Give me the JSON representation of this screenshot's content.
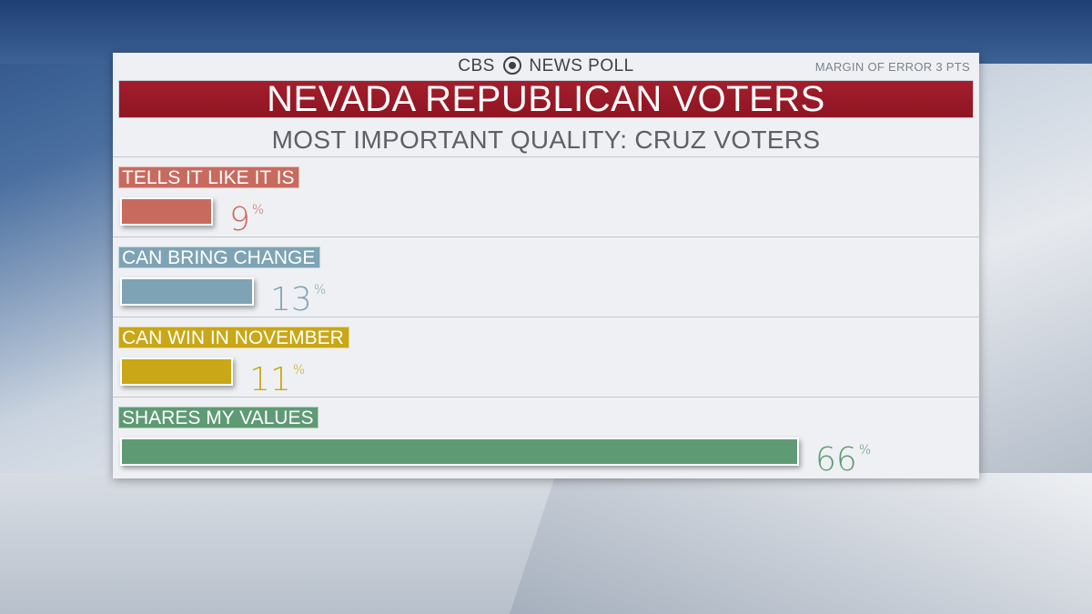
{
  "header": {
    "logo_left": "CBS",
    "logo_right": "NEWS POLL",
    "margin_of_error": "MARGIN OF ERROR 3 PTS"
  },
  "chart_data": {
    "type": "bar",
    "title": "NEVADA REPUBLICAN VOTERS",
    "subtitle": "MOST IMPORTANT QUALITY: CRUZ VOTERS",
    "categories": [
      "TELLS IT LIKE IT IS",
      "CAN BRING CHANGE",
      "CAN WIN IN NOVEMBER",
      "SHARES MY VALUES"
    ],
    "values": [
      9,
      13,
      11,
      66
    ],
    "value_labels": [
      "9",
      "13",
      "11",
      "66"
    ],
    "unit": "%",
    "colors": [
      "#c96a5f",
      "#7ea3b5",
      "#c9a716",
      "#5e9a74"
    ],
    "orientation": "horizontal",
    "xlim": [
      0,
      100
    ]
  }
}
